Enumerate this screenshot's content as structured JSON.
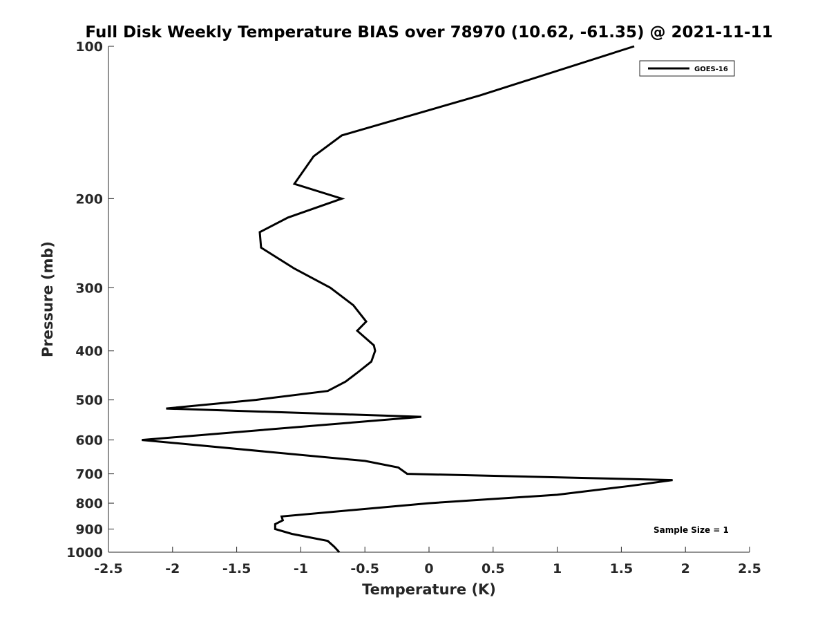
{
  "chart_data": {
    "type": "line",
    "title": "Full Disk Weekly Temperature BIAS over 78970 (10.62, -61.35) @ 2021-11-11",
    "xlabel": "Temperature (K)",
    "ylabel": "Pressure (mb)",
    "xlim": [
      -2.5,
      2.5
    ],
    "ylim": [
      100,
      1000
    ],
    "y_scale": "log",
    "y_reversed": true,
    "x_ticks": [
      -2.5,
      -2,
      -1.5,
      -1,
      -0.5,
      0,
      0.5,
      1,
      1.5,
      2,
      2.5
    ],
    "x_tick_labels": [
      "-2.5",
      "-2",
      "-1.5",
      "-1",
      "-0.5",
      "0",
      "0.5",
      "1",
      "1.5",
      "2",
      "2.5"
    ],
    "y_ticks": [
      100,
      200,
      300,
      400,
      500,
      600,
      700,
      800,
      900,
      1000
    ],
    "y_tick_labels": [
      "100",
      "200",
      "300",
      "400",
      "500",
      "600",
      "700",
      "800",
      "900",
      "1000"
    ],
    "grid": false,
    "legend_position": "top-right",
    "annotation": "Sample Size = 1",
    "series": [
      {
        "name": "GOES-16",
        "color": "#000000",
        "x": [
          1.6,
          0.4,
          -0.68,
          -0.9,
          -1.05,
          -0.68,
          -1.1,
          -1.32,
          -1.31,
          -1.05,
          -0.77,
          -0.59,
          -0.49,
          -0.56,
          -0.43,
          -0.42,
          -0.45,
          -0.55,
          -0.65,
          -0.79,
          -1.35,
          -2.05,
          -0.06,
          -2.24,
          -0.5,
          -0.24,
          -0.17,
          1.9,
          1.56,
          1.0,
          0.0,
          -1.15,
          -1.14,
          -1.2,
          -1.2,
          -1.07,
          -0.79,
          -0.74,
          -0.7
        ],
        "y": [
          100,
          125,
          150,
          165,
          187,
          200,
          218,
          233,
          250,
          275,
          300,
          325,
          350,
          365,
          390,
          400,
          420,
          440,
          460,
          480,
          500,
          520,
          540,
          600,
          660,
          680,
          700,
          720,
          740,
          770,
          800,
          850,
          865,
          880,
          900,
          920,
          950,
          975,
          1000
        ]
      }
    ]
  }
}
